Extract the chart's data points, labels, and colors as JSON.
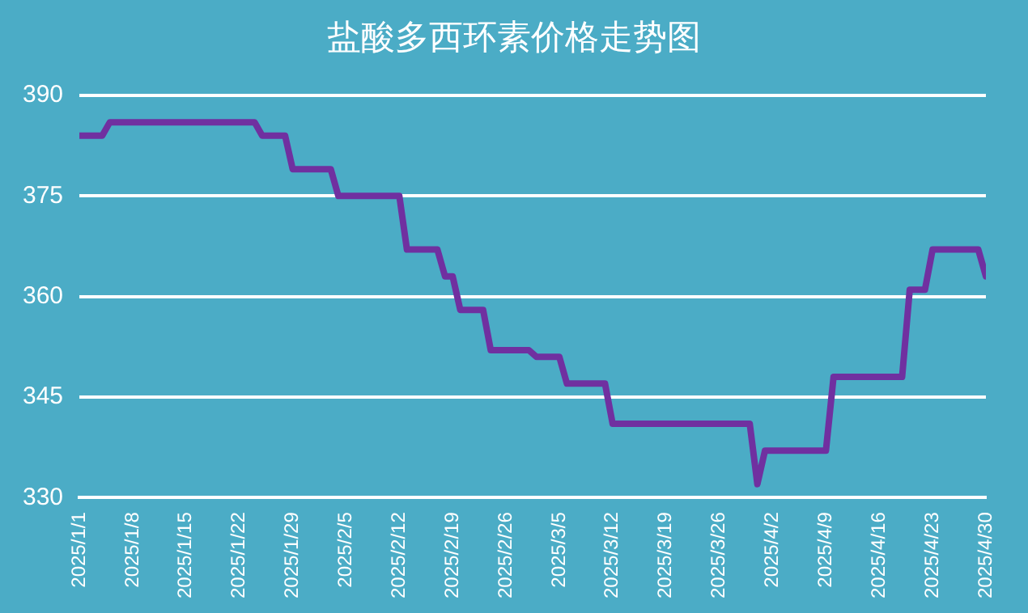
{
  "chart_data": {
    "type": "line",
    "title": "盐酸多西环素价格走势图",
    "x": [
      "2025-01-01",
      "2025-01-04",
      "2025-01-05",
      "2025-01-24",
      "2025-01-25",
      "2025-01-28",
      "2025-01-29",
      "2025-02-03",
      "2025-02-04",
      "2025-02-12",
      "2025-02-13",
      "2025-02-17",
      "2025-02-18",
      "2025-02-19",
      "2025-02-20",
      "2025-02-23",
      "2025-02-24",
      "2025-03-01",
      "2025-03-02",
      "2025-03-05",
      "2025-03-06",
      "2025-03-11",
      "2025-03-12",
      "2025-03-30",
      "2025-03-31",
      "2025-04-01",
      "2025-04-09",
      "2025-04-10",
      "2025-04-19",
      "2025-04-20",
      "2025-04-22",
      "2025-04-23",
      "2025-04-29",
      "2025-04-30"
    ],
    "series": [
      {
        "color": "#7030a0",
        "values": [
          384,
          384,
          386,
          386,
          384,
          384,
          379,
          379,
          375,
          375,
          367,
          367,
          363,
          363,
          358,
          358,
          352,
          352,
          351,
          351,
          347,
          347,
          341,
          341,
          332,
          337,
          337,
          348,
          348,
          361,
          361,
          367,
          367,
          363
        ]
      }
    ],
    "xlim": [
      "2025-01-01",
      "2025-04-30"
    ],
    "xticks": [
      {
        "value": "2025-01-01",
        "label": "2025/1/1"
      },
      {
        "value": "2025-01-08",
        "label": "2025/1/8"
      },
      {
        "value": "2025-01-15",
        "label": "2025/1/15"
      },
      {
        "value": "2025-01-22",
        "label": "2025/1/22"
      },
      {
        "value": "2025-01-29",
        "label": "2025/1/29"
      },
      {
        "value": "2025-02-05",
        "label": "2025/2/5"
      },
      {
        "value": "2025-02-12",
        "label": "2025/2/12"
      },
      {
        "value": "2025-02-19",
        "label": "2025/2/19"
      },
      {
        "value": "2025-02-26",
        "label": "2025/2/26"
      },
      {
        "value": "2025-03-05",
        "label": "2025/3/5"
      },
      {
        "value": "2025-03-12",
        "label": "2025/3/12"
      },
      {
        "value": "2025-03-19",
        "label": "2025/3/19"
      },
      {
        "value": "2025-03-26",
        "label": "2025/3/26"
      },
      {
        "value": "2025-04-02",
        "label": "2025/4/2"
      },
      {
        "value": "2025-04-09",
        "label": "2025/4/9"
      },
      {
        "value": "2025-04-16",
        "label": "2025/4/16"
      },
      {
        "value": "2025-04-23",
        "label": "2025/4/23"
      },
      {
        "value": "2025-04-30",
        "label": "2025/4/30"
      }
    ],
    "ylim": [
      330,
      390
    ],
    "yticks": [
      330,
      345,
      360,
      375,
      390
    ],
    "grid": "y",
    "legend": false,
    "marker": "none",
    "line_style": "solid"
  }
}
